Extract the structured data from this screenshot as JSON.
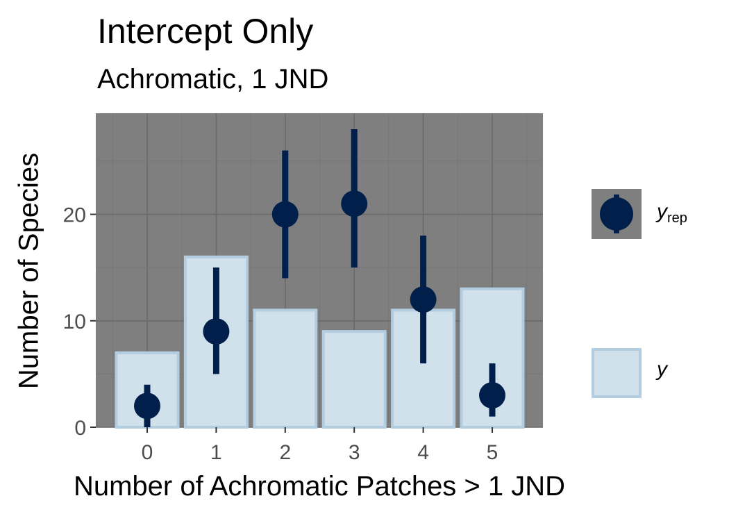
{
  "chart_data": {
    "type": "bar",
    "title": "Intercept Only",
    "subtitle": "Achromatic, 1 JND",
    "xlabel": "Number of Achromatic Patches > 1 JND",
    "ylabel": "Number of Species",
    "categories": [
      "0",
      "1",
      "2",
      "3",
      "4",
      "5"
    ],
    "ylim": [
      0,
      29.5
    ],
    "yticks": [
      0,
      10,
      20
    ],
    "grid": true,
    "legend": "right",
    "series": [
      {
        "name": "y",
        "kind": "bar",
        "values": [
          7,
          16,
          11,
          9,
          11,
          13
        ]
      },
      {
        "name": "y_rep",
        "kind": "pointrange",
        "values": [
          2,
          9,
          20,
          21,
          12,
          3
        ],
        "lower": [
          0,
          5,
          14,
          15,
          6,
          1
        ],
        "upper": [
          4,
          15,
          26,
          28,
          18,
          6
        ]
      }
    ]
  },
  "legend": {
    "yrep_main": "y",
    "yrep_sub": "rep",
    "y_label": "y"
  },
  "colors": {
    "panel": "#7f7f7f",
    "grid_major": "#6a6a6a",
    "grid_minor": "#757575",
    "bar_fill": "#d1e1ec",
    "bar_stroke": "#b3cde0",
    "point": "#011f4b",
    "axis_text": "#4d4d4d"
  }
}
